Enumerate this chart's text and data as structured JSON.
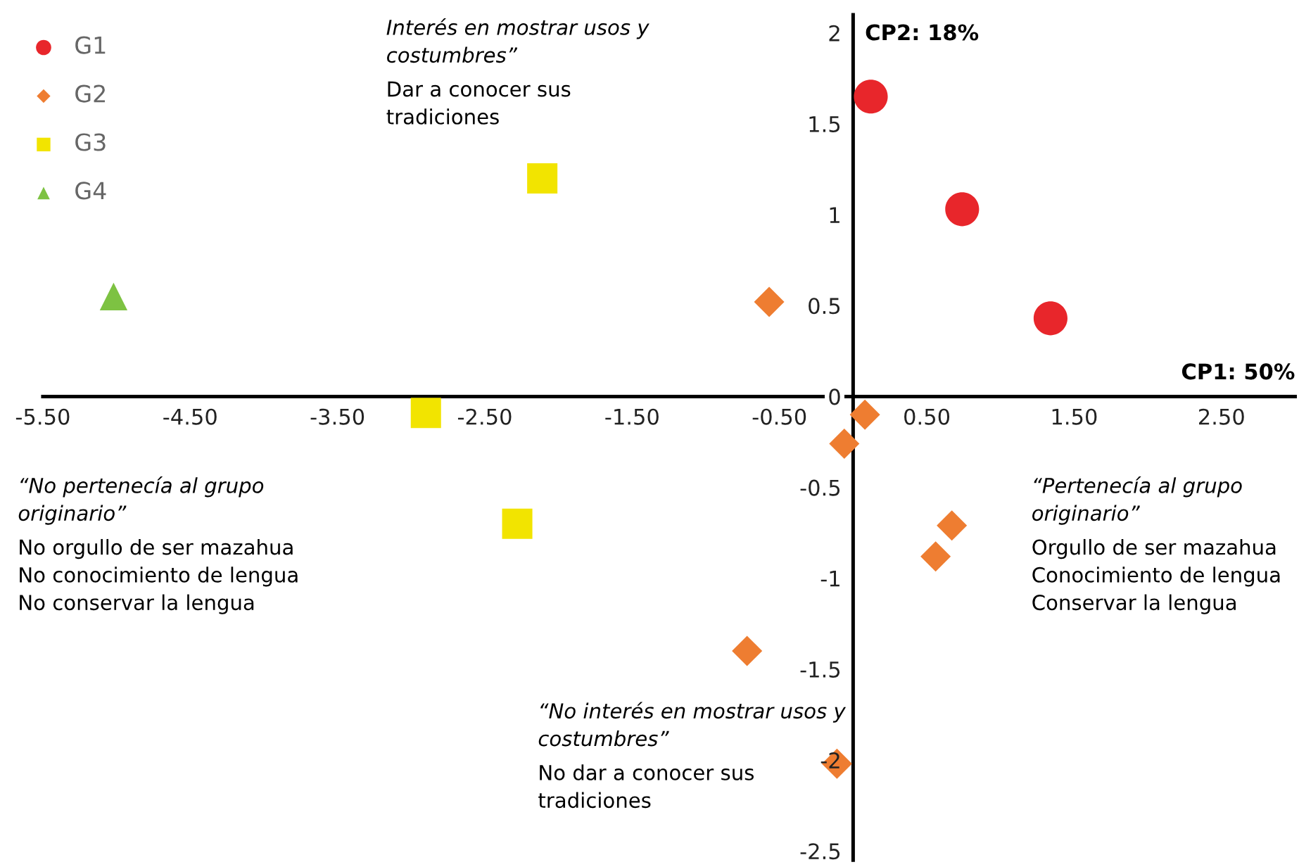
{
  "chart_data": {
    "type": "scatter",
    "xlabel": "CP1: 50%",
    "ylabel": "CP2: 18%",
    "xlim": [
      -5.5,
      3.0
    ],
    "ylim": [
      -2.55,
      2.1
    ],
    "xticks": [
      {
        "value": -5.5,
        "label": "-5.50"
      },
      {
        "value": -4.5,
        "label": "-4.50"
      },
      {
        "value": -3.5,
        "label": "-3.50"
      },
      {
        "value": -2.5,
        "label": "-2.50"
      },
      {
        "value": -1.5,
        "label": "-1.50"
      },
      {
        "value": -0.5,
        "label": "-0.50"
      },
      {
        "value": 0.5,
        "label": "0.50"
      },
      {
        "value": 1.5,
        "label": "1.50"
      },
      {
        "value": 2.5,
        "label": "2.50"
      }
    ],
    "yticks": [
      -2.5,
      -2,
      -1.5,
      -1,
      -0.5,
      0,
      0.5,
      1,
      1.5,
      2
    ],
    "grid": false,
    "legend": "top left",
    "series": [
      {
        "name": "G1",
        "color": "#e8262b",
        "marker": "circle",
        "x": [
          0.12,
          0.74,
          1.34
        ],
        "values": [
          1.65,
          1.03,
          0.43
        ]
      },
      {
        "name": "G2",
        "color": "#ee7d31",
        "marker": "diamond",
        "x": [
          -0.57,
          0.08,
          -0.06,
          0.67,
          0.56,
          -0.72,
          -0.11
        ],
        "values": [
          0.52,
          -0.1,
          -0.26,
          -0.71,
          -0.88,
          -1.4,
          -2.02
        ]
      },
      {
        "name": "G3",
        "color": "#f2e400",
        "marker": "square",
        "x": [
          -2.11,
          -2.9,
          -2.28
        ],
        "values": [
          1.2,
          -0.09,
          -0.7
        ]
      },
      {
        "name": "G4",
        "color": "#7dc242",
        "marker": "triangle",
        "x": [
          -5.02
        ],
        "values": [
          0.55
        ]
      }
    ],
    "annotations": [
      "Interés en mostrar usos y\ncostumbres”",
      "Dar a conocer sus\ntradiciones",
      "“No pertenecía al grupo\noriginario”",
      "No orgullo de ser mazahua\nNo conocimiento de lengua\nNo conservar la lengua",
      "“Pertenecía al grupo\noriginario”",
      "Orgullo de ser mazahua\nConocimiento de lengua\nConservar la lengua",
      "“No interés en mostrar usos y\ncostumbres”",
      "No dar a conocer sus\ntradiciones"
    ]
  }
}
